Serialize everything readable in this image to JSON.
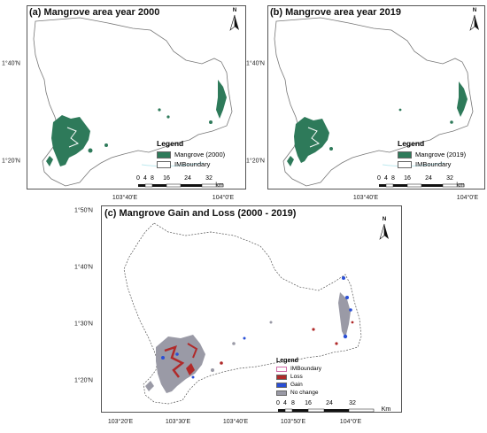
{
  "map_a": {
    "title": "(a) Mangrove area year 2000",
    "y_ticks": [
      "1°40'N",
      "1°20'N"
    ],
    "x_ticks": [
      "103°40'E",
      "104°0'E"
    ],
    "legend_title": "Legend",
    "legend_items": [
      {
        "label": "Mangrove (2000)",
        "color": "#2e7a5a"
      },
      {
        "label": "IMBoundary",
        "color": "#ffffff"
      }
    ],
    "scale_labels": [
      "0",
      "4",
      "8",
      "16",
      "24",
      "32"
    ],
    "scale_unit": "km",
    "north": "N"
  },
  "map_b": {
    "title": "(b) Mangrove area year 2019",
    "y_ticks": [
      "1°40'N",
      "1°20'N"
    ],
    "x_ticks": [
      "103°40'E",
      "104°0'E"
    ],
    "legend_title": "Legend",
    "legend_items": [
      {
        "label": "Mangrove (2019)",
        "color": "#2e7a5a"
      },
      {
        "label": "IMBoundary",
        "color": "#ffffff"
      }
    ],
    "scale_labels": [
      "0",
      "4",
      "8",
      "16",
      "24",
      "32"
    ],
    "scale_unit": "km",
    "north": "N"
  },
  "map_c": {
    "title": "(c) Mangrove Gain and Loss (2000 - 2019)",
    "y_ticks": [
      "1°50'N",
      "1°40'N",
      "1°30'N",
      "1°20'N"
    ],
    "x_ticks": [
      "103°20'E",
      "103°30'E",
      "103°40'E",
      "103°50'E",
      "104°0'E"
    ],
    "legend_title": "Legend",
    "legend_items": [
      {
        "label": "IMBoundary",
        "color": "#ffffff"
      },
      {
        "label": "Loss",
        "color": "#b02a2a"
      },
      {
        "label": "Gain",
        "color": "#2a4fd6"
      },
      {
        "label": "No change",
        "color": "#9a9aa6"
      }
    ],
    "scale_labels": [
      "0",
      "4",
      "8",
      "16",
      "24",
      "32"
    ],
    "scale_unit": "Km",
    "north": "N"
  }
}
